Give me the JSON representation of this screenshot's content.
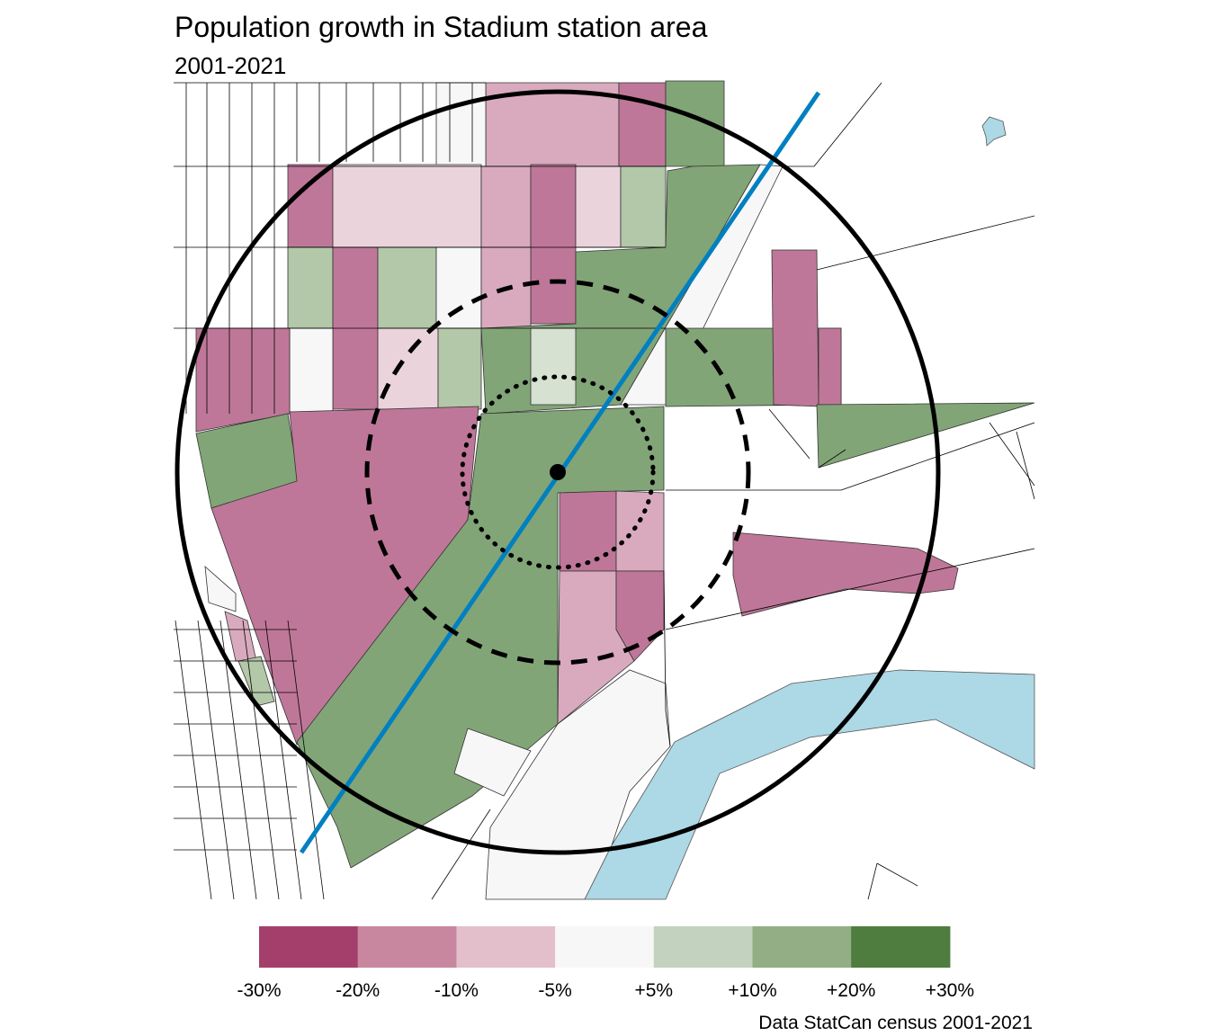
{
  "title": "Population growth in Stadium station area",
  "subtitle": "2001-2021",
  "caption": "Data StatCan census 2001-2021",
  "legend": {
    "labels": [
      "-30%",
      "-20%",
      "-10%",
      "-5%",
      "+5%",
      "+10%",
      "+20%",
      "+30%"
    ],
    "colors": [
      "#A43F6C",
      "#C8879E",
      "#E3BFCB",
      "#F7F7F7",
      "#C3D2BE",
      "#93AE85",
      "#4E7D3F"
    ]
  },
  "map_colors": {
    "strong_decline": "#BF7799",
    "decline": "#D9AABD",
    "slight_decline": "#EBD3DC",
    "stable": "#F7F7F7",
    "slight_growth": "#D6E1D1",
    "growth": "#B2C8A8",
    "strong_growth": "#82A577",
    "water": "#ADD8E6",
    "transit_line": "#0080C0"
  }
}
